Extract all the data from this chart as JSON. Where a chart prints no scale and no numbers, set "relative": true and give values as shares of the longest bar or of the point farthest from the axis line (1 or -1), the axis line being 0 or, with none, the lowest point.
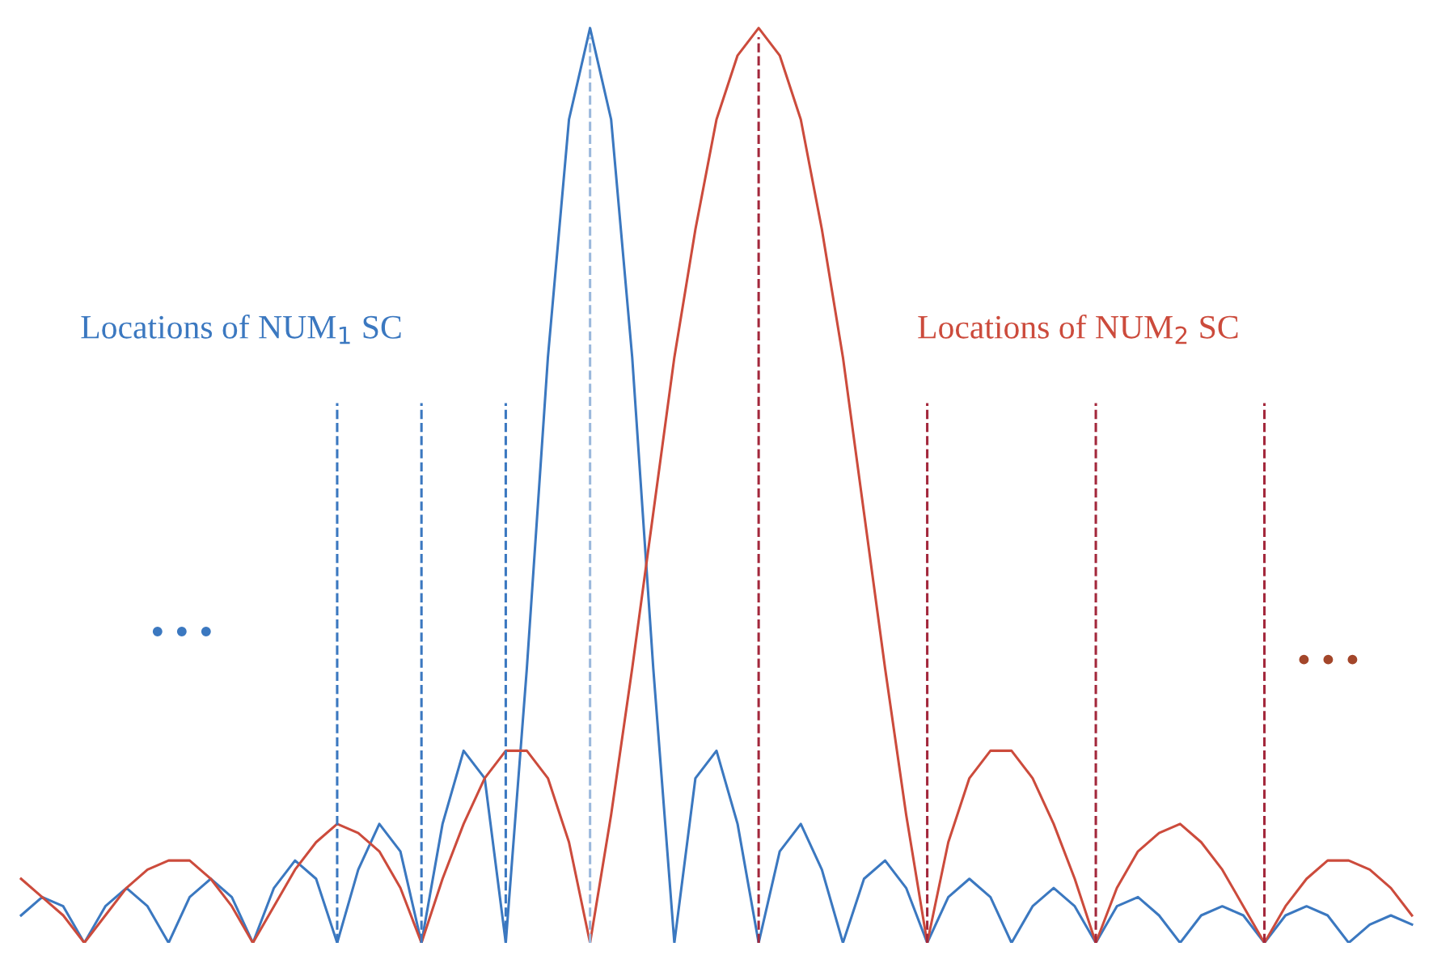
{
  "chart_data": {
    "type": "line",
    "relative": true,
    "categories": [
      null,
      null,
      null,
      null,
      null,
      null,
      null,
      null,
      null,
      null,
      null,
      null,
      null,
      null,
      null,
      null,
      null,
      null,
      null,
      null,
      null,
      null,
      null,
      null,
      null,
      null,
      null,
      null,
      null,
      null,
      null,
      null,
      null,
      null,
      null,
      null,
      null,
      null,
      null,
      null,
      null,
      null,
      null,
      null,
      null,
      null,
      null,
      null,
      null,
      null,
      null,
      null,
      null,
      null,
      null,
      null,
      null,
      null,
      null,
      null,
      null,
      null,
      null,
      null,
      null,
      null,
      null
    ],
    "grid": false,
    "legend": false,
    "marker": "none",
    "line_style": "solid",
    "series": [
      {
        "color": "#3b78c0",
        "values": [
          0.03,
          0.05,
          0.04,
          0,
          0.04,
          0.06,
          0.04,
          0,
          0.05,
          0.07,
          0.05,
          0,
          0.06,
          0.09,
          0.07,
          0,
          0.08,
          0.13,
          0.1,
          0,
          0.13,
          0.21,
          0.18,
          0,
          0.3,
          0.64,
          0.9,
          1,
          0.9,
          0.64,
          0.3,
          0,
          0.18,
          0.21,
          0.13,
          0,
          0.1,
          0.13,
          0.08,
          0,
          0.07,
          0.09,
          0.06,
          0,
          0.05,
          0.07,
          0.05,
          0,
          0.04,
          0.06,
          0.04,
          0,
          0.04,
          0.05,
          0.03,
          0,
          0.03,
          0.04,
          0.03,
          0,
          0.03,
          0.04,
          0.03,
          0,
          0.02,
          0.03,
          0.02
        ]
      },
      {
        "color": "#cc4b3c",
        "values": [
          0.07,
          0.05,
          0.03,
          0,
          0.03,
          0.06,
          0.08,
          0.09,
          0.09,
          0.07,
          0.04,
          0,
          0.04,
          0.08,
          0.11,
          0.13,
          0.12,
          0.1,
          0.06,
          0,
          0.07,
          0.13,
          0.18,
          0.21,
          0.21,
          0.18,
          0.11,
          0,
          0.14,
          0.3,
          0.47,
          0.64,
          0.78,
          0.9,
          0.97,
          1,
          0.97,
          0.9,
          0.78,
          0.64,
          0.47,
          0.3,
          0.14,
          0,
          0.11,
          0.18,
          0.21,
          0.21,
          0.18,
          0.13,
          0.07,
          0,
          0.06,
          0.1,
          0.12,
          0.13,
          0.11,
          0.08,
          0.04,
          0,
          0.04,
          0.07,
          0.09,
          0.09,
          0.08,
          0.06,
          0.03
        ]
      }
    ],
    "annotations": [
      "Locations of NUM$_{1}$ SC",
      "Locations of NUM$_{2}$ SC",
      "• • •",
      "• • •"
    ]
  }
}
